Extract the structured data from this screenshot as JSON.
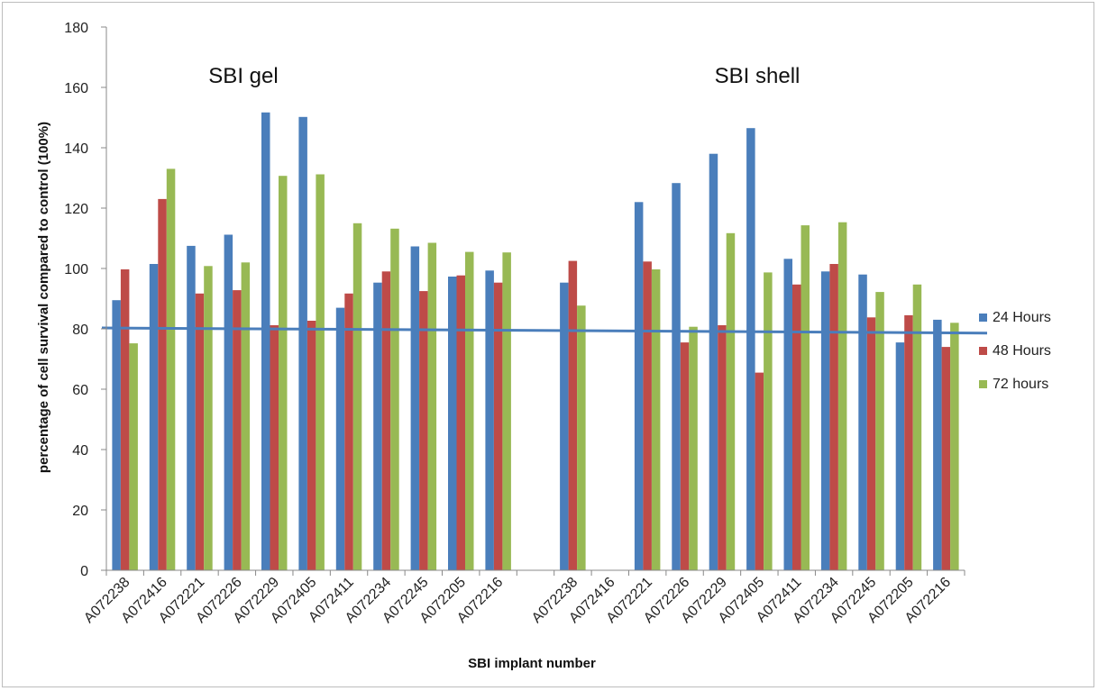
{
  "chart_data": {
    "type": "bar",
    "ylabel": "percentage of cell survival compared to control (100%)",
    "xlabel": "SBI implant number",
    "ylim": [
      0,
      180
    ],
    "yticks": [
      0,
      20,
      40,
      60,
      80,
      100,
      120,
      140,
      160,
      180
    ],
    "group_titles": [
      "SBI gel",
      "SBI shell"
    ],
    "categories": [
      "A072238",
      "A072416",
      "A072221",
      "A072226",
      "A072229",
      "A072405",
      "A072411",
      "A072234",
      "A072245",
      "A072205",
      "A072216",
      "",
      "A072238",
      "A072416",
      "A072221",
      "A072226",
      "A072229",
      "A072405",
      "A072411",
      "A072234",
      "A072245",
      "A072205",
      "A072216"
    ],
    "series": [
      {
        "name": "24 Hours",
        "color": "#4a7ebb",
        "values": [
          89.5,
          101.5,
          107.5,
          111.2,
          151.7,
          150.2,
          87,
          95.3,
          107.3,
          97.3,
          99.3,
          null,
          95.3,
          null,
          122,
          128.3,
          138,
          146.5,
          103.2,
          99,
          98,
          75.5,
          83
        ]
      },
      {
        "name": "48 Hours",
        "color": "#be4b48",
        "values": [
          99.7,
          123,
          91.7,
          92.8,
          81.2,
          82.7,
          91.7,
          99,
          92.5,
          97.7,
          95.3,
          null,
          102.5,
          null,
          102.3,
          75.5,
          81.2,
          65.5,
          94.7,
          101.5,
          83.8,
          84.5,
          74
        ]
      },
      {
        "name": "72 hours",
        "color": "#98b954",
        "values": [
          75.2,
          133,
          100.8,
          102,
          130.7,
          131.2,
          115,
          113.2,
          108.5,
          105.5,
          105.3,
          null,
          87.7,
          null,
          99.7,
          80.7,
          111.7,
          98.7,
          114.3,
          115.3,
          92.2,
          94.7,
          82
        ]
      }
    ],
    "trendline": {
      "color": "#4a7ebb",
      "from": 80.3,
      "to": 78.6
    },
    "legend_position": "right",
    "grid": false
  }
}
